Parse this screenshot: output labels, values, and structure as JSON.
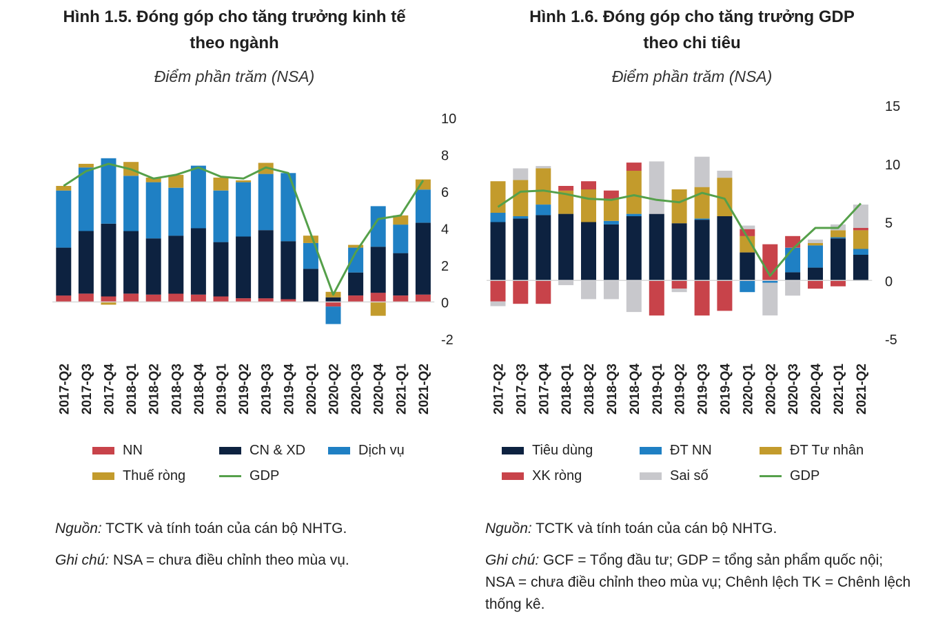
{
  "colors": {
    "nn": "#c8434a",
    "cnxd": "#0d2240",
    "dichvu": "#1f80c4",
    "thue": "#c39b2c",
    "gdp": "#55a04a",
    "tieudung": "#0d2240",
    "dtnn": "#1f80c4",
    "dttunhan": "#c39b2c",
    "xkrong": "#c8434a",
    "saiso": "#c8c8cc"
  },
  "left": {
    "title_line1": "Hình 1.5. Đóng góp cho tăng trưởng kinh tế",
    "title_line2": "theo ngành",
    "subtitle": "Điểm phần trăm (NSA)",
    "legend": [
      {
        "label": "NN",
        "color": "#c8434a",
        "type": "bar"
      },
      {
        "label": "CN & XD",
        "color": "#0d2240",
        "type": "bar"
      },
      {
        "label": "Dịch vụ",
        "color": "#1f80c4",
        "type": "bar"
      },
      {
        "label": "Thuế ròng",
        "color": "#c39b2c",
        "type": "bar"
      },
      {
        "label": "GDP",
        "color": "#55a04a",
        "type": "line"
      }
    ],
    "source_label": "Nguồn:",
    "source_text": " TCTK và tính toán của cán bộ NHTG.",
    "note_label": "Ghi chú:",
    "note_text": " NSA = chưa điều chỉnh theo mùa vụ."
  },
  "right": {
    "title_line1": "Hình 1.6. Đóng góp cho tăng trưởng GDP",
    "title_line2": "theo chi tiêu",
    "subtitle": "Điểm phần trăm (NSA)",
    "legend": [
      {
        "label": "Tiêu dùng",
        "color": "#0d2240",
        "type": "bar"
      },
      {
        "label": "ĐT NN",
        "color": "#1f80c4",
        "type": "bar"
      },
      {
        "label": "ĐT Tư nhân",
        "color": "#c39b2c",
        "type": "bar"
      },
      {
        "label": "XK ròng",
        "color": "#c8434a",
        "type": "bar"
      },
      {
        "label": "Sai số",
        "color": "#c8c8cc",
        "type": "bar"
      },
      {
        "label": "GDP",
        "color": "#55a04a",
        "type": "line"
      }
    ],
    "source_label": "Nguồn:",
    "source_text": " TCTK và tính toán của cán bộ NHTG.",
    "note_label": "Ghi chú:",
    "note_text": " GCF = Tổng đầu tư; GDP = tổng sản phẩm quốc nội; NSA = chưa điều chỉnh theo mùa vụ; Chênh lệch TK = Chênh lệch thống kê."
  },
  "chart_data": [
    {
      "type": "bar",
      "stacked": true,
      "title": "Hình 1.5. Đóng góp cho tăng trưởng kinh tế theo ngành",
      "subtitle": "Điểm phần trăm (NSA)",
      "categories": [
        "2017-Q2",
        "2017-Q3",
        "2017-Q4",
        "2018-Q1",
        "2018-Q2",
        "2018-Q3",
        "2018-Q4",
        "2019-Q1",
        "2019-Q2",
        "2019-Q3",
        "2019-Q4",
        "2020-Q1",
        "2020-Q2",
        "2020-Q3",
        "2020-Q4",
        "2021-Q1",
        "2021-Q2"
      ],
      "ylim": [
        -2,
        10
      ],
      "yticks": [
        -2,
        0,
        2,
        4,
        6,
        8,
        10
      ],
      "axis_side": "right",
      "series": [
        {
          "name": "NN",
          "color": "#c8434a",
          "values": [
            0.35,
            0.45,
            0.3,
            0.45,
            0.4,
            0.45,
            0.4,
            0.3,
            0.2,
            0.2,
            0.15,
            0.0,
            -0.25,
            0.35,
            0.5,
            0.35,
            0.4
          ]
        },
        {
          "name": "CN & XD",
          "color": "#0d2240",
          "values": [
            2.6,
            3.4,
            3.95,
            3.4,
            3.05,
            3.15,
            3.6,
            2.95,
            3.35,
            3.7,
            3.15,
            1.8,
            0.25,
            1.25,
            2.5,
            2.3,
            3.9
          ]
        },
        {
          "name": "Dịch vụ",
          "color": "#1f80c4",
          "values": [
            3.1,
            3.45,
            3.55,
            3.0,
            3.05,
            2.6,
            3.4,
            2.8,
            2.95,
            3.05,
            3.7,
            1.4,
            -0.95,
            1.35,
            2.2,
            1.55,
            1.8
          ]
        },
        {
          "name": "Thuế ròng",
          "color": "#c39b2c",
          "values": [
            0.25,
            0.2,
            -0.15,
            0.75,
            0.25,
            0.7,
            0.0,
            0.7,
            0.1,
            0.6,
            0.0,
            0.4,
            0.3,
            0.15,
            -0.75,
            0.5,
            0.55
          ]
        }
      ],
      "line": {
        "name": "GDP",
        "color": "#55a04a",
        "values": [
          6.3,
          7.1,
          7.5,
          7.2,
          6.7,
          6.9,
          7.3,
          6.8,
          6.7,
          7.3,
          7.0,
          3.7,
          0.4,
          2.7,
          4.5,
          4.7,
          6.6
        ]
      },
      "legend": "bottom"
    },
    {
      "type": "bar",
      "stacked": true,
      "title": "Hình 1.6. Đóng góp cho tăng trưởng GDP theo chi tiêu",
      "subtitle": "Điểm phần trăm (NSA)",
      "categories": [
        "2017-Q2",
        "2017-Q3",
        "2017-Q4",
        "2018-Q1",
        "2018-Q2",
        "2018-Q3",
        "2018-Q4",
        "2019-Q1",
        "2019-Q2",
        "2019-Q3",
        "2019-Q4",
        "2020-Q1",
        "2020-Q2",
        "2020-Q3",
        "2020-Q4",
        "2021-Q1",
        "2021-Q2"
      ],
      "ylim": [
        -5,
        15
      ],
      "yticks": [
        -5,
        0,
        5,
        10,
        15
      ],
      "axis_side": "right",
      "series": [
        {
          "name": "Tiêu dùng",
          "color": "#0d2240",
          "values": [
            5.0,
            5.3,
            5.6,
            5.7,
            5.0,
            4.8,
            5.5,
            5.7,
            4.9,
            5.2,
            5.5,
            2.4,
            0.0,
            0.7,
            1.1,
            3.6,
            2.2
          ]
        },
        {
          "name": "ĐT NN",
          "color": "#1f80c4",
          "values": [
            0.8,
            0.2,
            0.9,
            0.0,
            0.0,
            0.3,
            0.2,
            0.0,
            0.0,
            0.1,
            0.0,
            -1.0,
            -0.2,
            2.1,
            1.9,
            0.1,
            0.5
          ]
        },
        {
          "name": "ĐT Tư nhân",
          "color": "#c39b2c",
          "values": [
            2.7,
            3.1,
            3.1,
            2.0,
            2.8,
            1.9,
            3.7,
            0.0,
            2.9,
            2.7,
            3.3,
            1.4,
            0.0,
            0.0,
            0.2,
            0.6,
            1.6
          ]
        },
        {
          "name": "XK ròng",
          "color": "#c8434a",
          "values": [
            -1.8,
            -2.0,
            -2.0,
            0.4,
            0.7,
            0.7,
            0.7,
            -3.0,
            -0.7,
            -3.0,
            -2.6,
            0.6,
            3.1,
            1.0,
            -0.7,
            -0.5,
            0.2
          ]
        },
        {
          "name": "Sai số",
          "color": "#c8c8cc",
          "values": [
            -0.4,
            1.0,
            0.2,
            -0.4,
            -1.6,
            -1.6,
            -2.7,
            4.5,
            -0.3,
            2.6,
            0.6,
            0.3,
            -2.8,
            -1.3,
            0.3,
            0.5,
            2.0
          ]
        }
      ],
      "line": {
        "name": "GDP",
        "color": "#55a04a",
        "values": [
          6.3,
          7.6,
          7.7,
          7.4,
          7.0,
          6.9,
          7.3,
          6.9,
          6.7,
          7.5,
          7.0,
          3.7,
          0.4,
          2.7,
          4.5,
          4.5,
          6.6
        ]
      },
      "legend": "bottom"
    }
  ]
}
